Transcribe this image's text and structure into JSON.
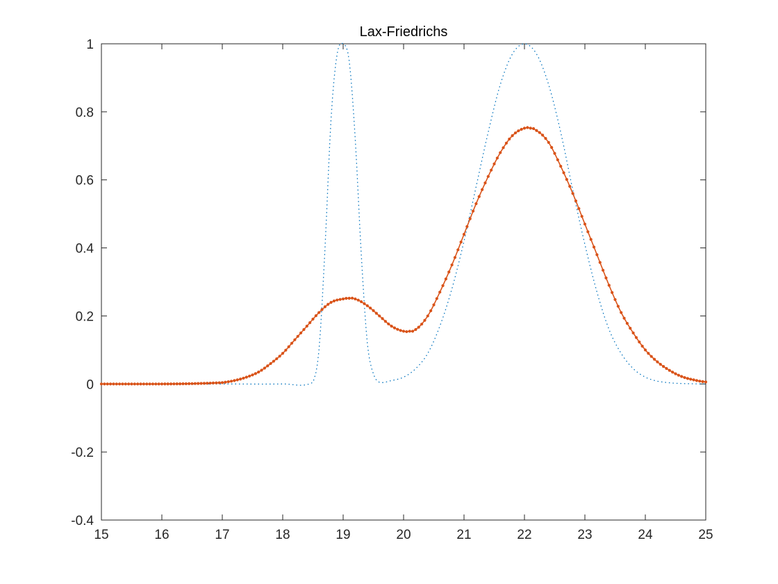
{
  "chart_data": {
    "type": "line",
    "title": "Lax-Friedrichs",
    "xlabel": "",
    "ylabel": "",
    "xlim": [
      15,
      25
    ],
    "ylim": [
      -0.4,
      1
    ],
    "xticks": [
      15,
      16,
      17,
      18,
      19,
      20,
      21,
      22,
      23,
      24,
      25
    ],
    "yticks": [
      -0.4,
      -0.2,
      0,
      0.2,
      0.4,
      0.6,
      0.8,
      1
    ],
    "xtick_labels": [
      "15",
      "16",
      "17",
      "18",
      "19",
      "20",
      "21",
      "22",
      "23",
      "24",
      "25"
    ],
    "ytick_labels": [
      "-0.4",
      "-0.2",
      "0",
      "0.2",
      "0.4",
      "0.6",
      "0.8",
      "1"
    ],
    "grid": false,
    "legend": "none",
    "series": [
      {
        "style": "dotted",
        "color": "#0072bd",
        "x": [
          15,
          17,
          18,
          18.5,
          18.6,
          18.7,
          18.8,
          18.9,
          19.0,
          19.1,
          19.2,
          19.3,
          19.4,
          19.5,
          19.6,
          19.8,
          20.0,
          20.2,
          20.4,
          20.6,
          20.8,
          21.0,
          21.2,
          21.4,
          21.6,
          21.8,
          22.0,
          22.2,
          22.4,
          22.6,
          22.8,
          23.0,
          23.2,
          23.4,
          23.6,
          23.8,
          24.0,
          24.2,
          24.5,
          25
        ],
        "y": [
          0,
          0,
          0,
          0.005,
          0.1,
          0.4,
          0.78,
          0.97,
          1.0,
          0.95,
          0.72,
          0.38,
          0.12,
          0.03,
          0.005,
          0.01,
          0.02,
          0.045,
          0.09,
          0.17,
          0.28,
          0.42,
          0.58,
          0.74,
          0.88,
          0.97,
          1.0,
          0.97,
          0.88,
          0.74,
          0.57,
          0.41,
          0.27,
          0.16,
          0.09,
          0.045,
          0.02,
          0.008,
          0.002,
          0
        ]
      },
      {
        "style": "line-with-markers",
        "color": "#d95319",
        "x": [
          15,
          16,
          16.5,
          17.0,
          17.2,
          17.4,
          17.6,
          17.8,
          18.0,
          18.2,
          18.4,
          18.6,
          18.8,
          19.0,
          19.1,
          19.2,
          19.4,
          19.6,
          19.8,
          20.0,
          20.1,
          20.2,
          20.4,
          20.6,
          20.8,
          21.0,
          21.2,
          21.4,
          21.6,
          21.8,
          22.0,
          22.1,
          22.2,
          22.4,
          22.6,
          22.8,
          23.0,
          23.2,
          23.4,
          23.6,
          23.8,
          24.0,
          24.2,
          24.4,
          24.6,
          24.8,
          25.0
        ],
        "y": [
          0,
          0,
          0.001,
          0.004,
          0.01,
          0.02,
          0.035,
          0.06,
          0.09,
          0.13,
          0.17,
          0.21,
          0.24,
          0.25,
          0.252,
          0.25,
          0.23,
          0.2,
          0.17,
          0.155,
          0.155,
          0.16,
          0.2,
          0.27,
          0.35,
          0.44,
          0.53,
          0.61,
          0.68,
          0.73,
          0.752,
          0.752,
          0.745,
          0.71,
          0.64,
          0.56,
          0.47,
          0.38,
          0.29,
          0.21,
          0.15,
          0.1,
          0.065,
          0.04,
          0.022,
          0.012,
          0.006
        ]
      }
    ]
  }
}
